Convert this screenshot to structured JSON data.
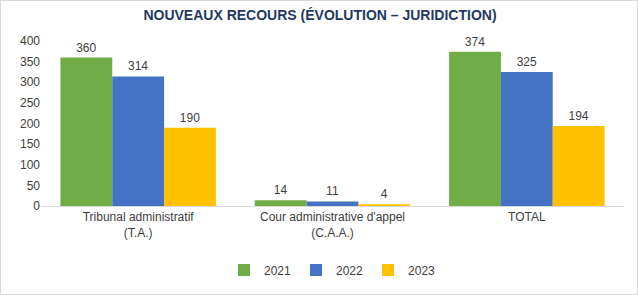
{
  "chart_data": {
    "type": "bar",
    "title": "NOUVEAUX RECOURS (ÉVOLUTION – JURIDICTION)",
    "categories": [
      "Tribunal administratif (T.A.)",
      "Cour administrative d'appel (C.A.A.)",
      "TOTAL"
    ],
    "series": [
      {
        "name": "2021",
        "color": "#70ad47",
        "values": [
          360,
          14,
          374
        ]
      },
      {
        "name": "2022",
        "color": "#4472c4",
        "values": [
          314,
          11,
          325
        ]
      },
      {
        "name": "2023",
        "color": "#ffc000",
        "values": [
          190,
          4,
          194
        ]
      }
    ],
    "ylim": [
      0,
      400
    ],
    "yticks": [
      0,
      50,
      100,
      150,
      200,
      250,
      300,
      350,
      400
    ],
    "grid": false,
    "legend": "bottom",
    "data_labels": true
  }
}
